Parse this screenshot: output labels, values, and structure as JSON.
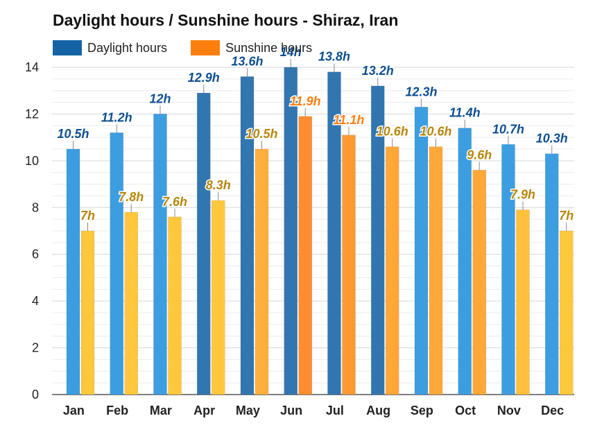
{
  "chart_data": {
    "type": "bar",
    "title": "Daylight hours / Sunshine hours - Shiraz, Iran",
    "xlabel": "",
    "ylabel": "",
    "ylim": [
      0,
      14
    ],
    "yticks": [
      0,
      2,
      4,
      6,
      8,
      10,
      12,
      14
    ],
    "grid": true,
    "legend_position": "top-left",
    "value_suffix": "h",
    "categories": [
      "Jan",
      "Feb",
      "Mar",
      "Apr",
      "May",
      "Jun",
      "Jul",
      "Aug",
      "Sep",
      "Oct",
      "Nov",
      "Dec"
    ],
    "series": [
      {
        "name": "Daylight hours",
        "legend_color": "#1464a5",
        "label_color": "#0d4f91",
        "values": [
          10.5,
          11.2,
          12,
          12.9,
          13.6,
          14,
          13.8,
          13.2,
          12.3,
          11.4,
          10.7,
          10.3
        ],
        "bar_colors": [
          "#3c9ee0",
          "#3c9ee0",
          "#3c9ee0",
          "#3276b0",
          "#3276b0",
          "#3276b0",
          "#3276b0",
          "#3276b0",
          "#3c9ee0",
          "#3c9ee0",
          "#3c9ee0",
          "#3c9ee0"
        ]
      },
      {
        "name": "Sunshine hours",
        "legend_color": "#ff7f0e",
        "label_color": "#b8860b",
        "highlight_label_color": "#ff7f0e",
        "values": [
          7,
          7.8,
          7.6,
          8.3,
          10.5,
          11.9,
          11.1,
          10.6,
          10.6,
          9.6,
          7.9,
          7
        ],
        "bar_colors": [
          "#ffc83c",
          "#ffc83c",
          "#ffc83c",
          "#ffc83c",
          "#ffb03c",
          "#ff8c2e",
          "#ff9a32",
          "#ffa838",
          "#ffa838",
          "#ffa838",
          "#ffc03c",
          "#ffc83c"
        ],
        "label_colors": [
          "#b8860b",
          "#b8860b",
          "#b8860b",
          "#b8860b",
          "#b8860b",
          "#ff7f0e",
          "#ff7f0e",
          "#b8860b",
          "#b8860b",
          "#b8860b",
          "#b8860b",
          "#b8860b"
        ]
      }
    ]
  }
}
